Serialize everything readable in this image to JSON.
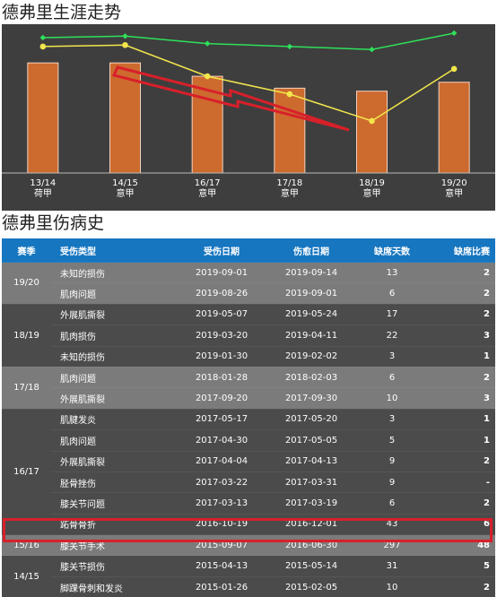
{
  "chart_title": "德弗里生涯走势",
  "table_title": "德弗里伤病史",
  "chart_data": {
    "type": "bar",
    "categories": [
      "13/14\n荷甲",
      "14/15\n意甲",
      "16/17\n意甲",
      "17/18\n意甲",
      "18/19\n意甲",
      "19/20\n意甲"
    ],
    "category_lines": [
      [
        "13/14",
        "荷甲"
      ],
      [
        "14/15",
        "意甲"
      ],
      [
        "16/17",
        "意甲"
      ],
      [
        "17/18",
        "意甲"
      ],
      [
        "18/19",
        "意甲"
      ],
      [
        "19/20",
        "意甲"
      ]
    ],
    "bar_values": [
      74,
      74,
      65,
      57,
      55,
      61
    ],
    "series": [
      {
        "values": [
          91,
          92,
          87,
          85,
          83,
          94
        ],
        "color": "#2ee05a"
      },
      {
        "values": [
          85,
          86,
          65,
          53,
          35,
          70
        ],
        "color": "#f2e64b"
      }
    ],
    "bar_color": "#cd6a2e",
    "ylim": [
      0,
      100
    ],
    "arrow_color": "#d8202a"
  },
  "table": {
    "headers": [
      "赛季",
      "受伤类型",
      "受伤日期",
      "伤愈日期",
      "缺席天数",
      "缺席比赛"
    ],
    "groups": [
      {
        "season": "19/20",
        "shade": "light",
        "rows": [
          [
            "未知的损伤",
            "2019-09-01",
            "2019-09-14",
            "13",
            "2"
          ],
          [
            "肌肉问题",
            "2019-08-26",
            "2019-09-01",
            "6",
            "2"
          ]
        ]
      },
      {
        "season": "18/19",
        "shade": "dark",
        "rows": [
          [
            "外展肌撕裂",
            "2019-05-07",
            "2019-05-24",
            "17",
            "2"
          ],
          [
            "肌肉损伤",
            "2019-03-20",
            "2019-04-11",
            "22",
            "3"
          ],
          [
            "未知的损伤",
            "2019-01-30",
            "2019-02-02",
            "3",
            "1"
          ]
        ]
      },
      {
        "season": "17/18",
        "shade": "light",
        "rows": [
          [
            "肌肉问题",
            "2018-01-28",
            "2018-02-03",
            "6",
            "2"
          ],
          [
            "外展肌撕裂",
            "2017-09-20",
            "2017-09-30",
            "10",
            "3"
          ]
        ]
      },
      {
        "season": "16/17",
        "shade": "dark",
        "rows": [
          [
            "肌腱发炎",
            "2017-05-17",
            "2017-05-20",
            "3",
            "1"
          ],
          [
            "肌肉问题",
            "2017-04-30",
            "2017-05-05",
            "5",
            "1"
          ],
          [
            "外展肌撕裂",
            "2017-04-04",
            "2017-04-13",
            "9",
            "2"
          ],
          [
            "胫骨挫伤",
            "2017-03-22",
            "2017-03-31",
            "9",
            "-"
          ],
          [
            "膝关节问题",
            "2017-03-13",
            "2017-03-19",
            "6",
            "2"
          ],
          [
            "跖骨骨折",
            "2016-10-19",
            "2016-12-01",
            "43",
            "6"
          ]
        ]
      },
      {
        "season": "15/16",
        "shade": "light",
        "rows": [
          [
            "膝关节手术",
            "2015-09-07",
            "2016-06-30",
            "297",
            "48"
          ]
        ]
      },
      {
        "season": "14/15",
        "shade": "dark",
        "rows": [
          [
            "膝关节损伤",
            "2015-04-13",
            "2015-05-14",
            "31",
            "5"
          ],
          [
            "脚踝骨刺和发炎",
            "2015-01-26",
            "2015-02-05",
            "10",
            "2"
          ]
        ]
      }
    ]
  }
}
